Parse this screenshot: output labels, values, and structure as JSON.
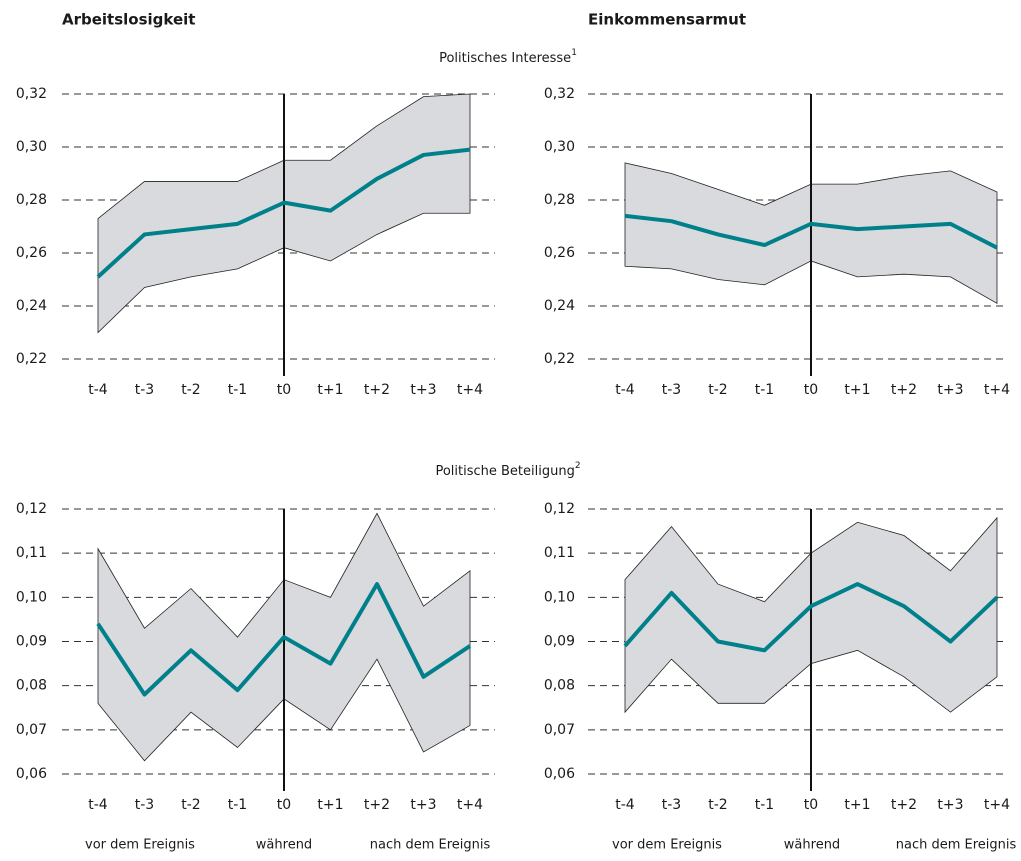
{
  "columns": [
    "Arbeitslosigkeit",
    "Einkommensarmut"
  ],
  "rows": [
    {
      "title": "Politisches Interesse",
      "note": "1"
    },
    {
      "title": "Politische Beteiligung",
      "note": "2"
    }
  ],
  "phases": [
    "vor dem Ereignis",
    "während",
    "nach dem Ereignis"
  ],
  "chart_data": [
    {
      "type": "line",
      "categories": [
        "t-4",
        "t-3",
        "t-2",
        "t-1",
        "t0",
        "t+1",
        "t+2",
        "t+3",
        "t+4"
      ],
      "values": [
        0.251,
        0.267,
        0.269,
        0.271,
        0.279,
        0.276,
        0.288,
        0.297,
        0.299
      ],
      "band_upper": [
        0.273,
        0.287,
        0.287,
        0.287,
        0.295,
        0.295,
        0.308,
        0.319,
        0.32
      ],
      "band_lower": [
        0.23,
        0.247,
        0.251,
        0.254,
        0.262,
        0.257,
        0.267,
        0.275,
        0.275
      ],
      "color": "#00808a",
      "band_color": "#d9dadd",
      "grid": true,
      "ylim": [
        0.22,
        0.32
      ],
      "yticks": [
        {
          "value": 0.22,
          "label": "0,22"
        },
        {
          "value": 0.24,
          "label": "0,24"
        },
        {
          "value": 0.26,
          "label": "0,26"
        },
        {
          "value": 0.28,
          "label": "0,28"
        },
        {
          "value": 0.3,
          "label": "0,30"
        },
        {
          "value": 0.32,
          "label": "0,32"
        }
      ]
    },
    {
      "type": "line",
      "categories": [
        "t-4",
        "t-3",
        "t-2",
        "t-1",
        "t0",
        "t+1",
        "t+2",
        "t+3",
        "t+4"
      ],
      "values": [
        0.274,
        0.272,
        0.267,
        0.263,
        0.271,
        0.269,
        0.27,
        0.271,
        0.262
      ],
      "band_upper": [
        0.294,
        0.29,
        0.284,
        0.278,
        0.286,
        0.286,
        0.289,
        0.291,
        0.283
      ],
      "band_lower": [
        0.255,
        0.254,
        0.25,
        0.248,
        0.257,
        0.251,
        0.252,
        0.251,
        0.241
      ],
      "color": "#00808a",
      "band_color": "#d9dadd",
      "grid": true,
      "ylim": [
        0.22,
        0.32
      ],
      "yticks": [
        {
          "value": 0.22,
          "label": "0,22"
        },
        {
          "value": 0.24,
          "label": "0,24"
        },
        {
          "value": 0.26,
          "label": "0,26"
        },
        {
          "value": 0.28,
          "label": "0,28"
        },
        {
          "value": 0.3,
          "label": "0,30"
        },
        {
          "value": 0.32,
          "label": "0,32"
        }
      ]
    },
    {
      "type": "line",
      "categories": [
        "t-4",
        "t-3",
        "t-2",
        "t-1",
        "t0",
        "t+1",
        "t+2",
        "t+3",
        "t+4"
      ],
      "values": [
        0.094,
        0.078,
        0.088,
        0.079,
        0.091,
        0.085,
        0.103,
        0.082,
        0.089
      ],
      "band_upper": [
        0.111,
        0.093,
        0.102,
        0.091,
        0.104,
        0.1,
        0.119,
        0.098,
        0.106
      ],
      "band_lower": [
        0.076,
        0.063,
        0.074,
        0.066,
        0.077,
        0.07,
        0.086,
        0.065,
        0.071
      ],
      "color": "#00808a",
      "band_color": "#d9dadd",
      "grid": true,
      "ylim": [
        0.06,
        0.12
      ],
      "yticks": [
        {
          "value": 0.06,
          "label": "0,06"
        },
        {
          "value": 0.07,
          "label": "0,07"
        },
        {
          "value": 0.08,
          "label": "0,08"
        },
        {
          "value": 0.09,
          "label": "0,09"
        },
        {
          "value": 0.1,
          "label": "0,10"
        },
        {
          "value": 0.11,
          "label": "0,11"
        },
        {
          "value": 0.12,
          "label": "0,12"
        }
      ]
    },
    {
      "type": "line",
      "categories": [
        "t-4",
        "t-3",
        "t-2",
        "t-1",
        "t0",
        "t+1",
        "t+2",
        "t+3",
        "t+4"
      ],
      "values": [
        0.089,
        0.101,
        0.09,
        0.088,
        0.098,
        0.103,
        0.098,
        0.09,
        0.1
      ],
      "band_upper": [
        0.104,
        0.116,
        0.103,
        0.099,
        0.11,
        0.117,
        0.114,
        0.106,
        0.118
      ],
      "band_lower": [
        0.074,
        0.086,
        0.076,
        0.076,
        0.085,
        0.088,
        0.082,
        0.074,
        0.082
      ],
      "color": "#00808a",
      "band_color": "#d9dadd",
      "grid": true,
      "ylim": [
        0.06,
        0.12
      ],
      "yticks": [
        {
          "value": 0.06,
          "label": "0,06"
        },
        {
          "value": 0.07,
          "label": "0,07"
        },
        {
          "value": 0.08,
          "label": "0,08"
        },
        {
          "value": 0.09,
          "label": "0,09"
        },
        {
          "value": 0.1,
          "label": "0,10"
        },
        {
          "value": 0.11,
          "label": "0,11"
        },
        {
          "value": 0.12,
          "label": "0,12"
        }
      ]
    }
  ]
}
